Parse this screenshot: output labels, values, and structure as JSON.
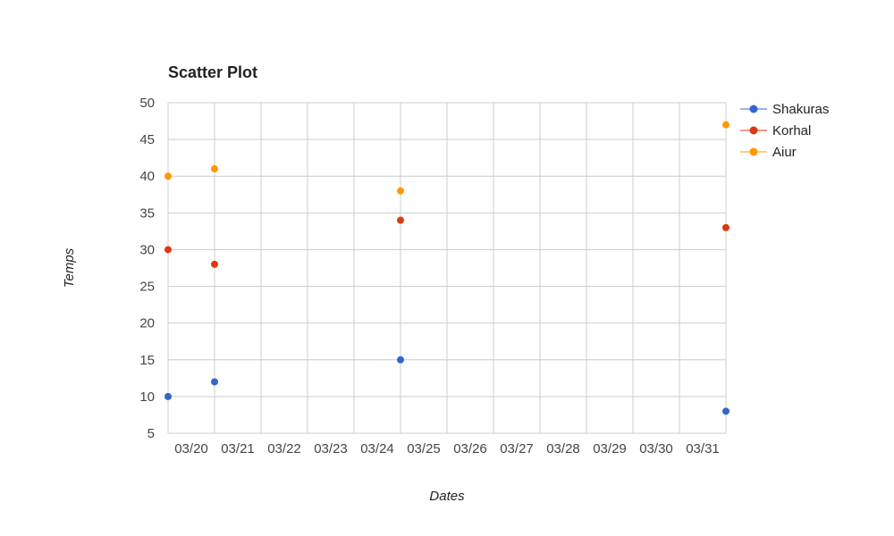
{
  "chart_data": {
    "type": "scatter",
    "title": "Scatter Plot",
    "xlabel": "Dates",
    "ylabel": "Temps",
    "x_ticks": [
      "03/20",
      "03/21",
      "03/22",
      "03/23",
      "03/24",
      "03/25",
      "03/26",
      "03/27",
      "03/28",
      "03/29",
      "03/30",
      "03/31"
    ],
    "y_ticks": [
      5,
      10,
      15,
      20,
      25,
      30,
      35,
      40,
      45,
      50
    ],
    "ylim": [
      5,
      50
    ],
    "xlim": [
      "03/20",
      "04/01"
    ],
    "x": [
      "03/20",
      "03/21",
      "03/25",
      "04/01"
    ],
    "grid": true,
    "legend_position": "right",
    "series": [
      {
        "name": "Shakuras",
        "color": "#3366cc",
        "values": [
          10,
          12,
          15,
          8
        ]
      },
      {
        "name": "Korhal",
        "color": "#dc3912",
        "values": [
          30,
          28,
          34,
          33
        ]
      },
      {
        "name": "Aiur",
        "color": "#ff9900",
        "values": [
          40,
          41,
          38,
          47
        ]
      }
    ]
  }
}
